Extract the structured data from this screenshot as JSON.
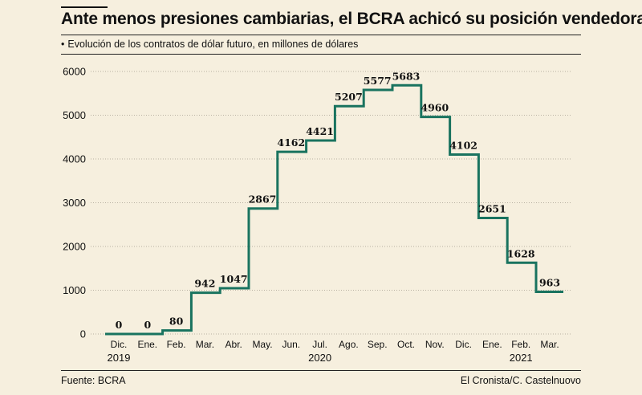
{
  "header": {
    "title": "Ante menos presiones cambiarias, el BCRA achicó su posición vendedora",
    "bullet": "•",
    "subtitle": "Evolución de los contratos de dólar futuro, en millones de dólares"
  },
  "footer": {
    "source": "Fuente: BCRA",
    "credit": "El Cronista/C. Castelnuovo"
  },
  "colors": {
    "line": "#19735f",
    "background": "#f6efde"
  },
  "chart_data": {
    "type": "line",
    "step": true,
    "title": "Ante menos presiones cambiarias, el BCRA achicó su posición vendedora",
    "ylabel": "millones de dólares",
    "ylim": [
      0,
      6000
    ],
    "yticks": [
      0,
      1000,
      2000,
      3000,
      4000,
      5000,
      6000
    ],
    "ytick_labels": [
      "0",
      "1000",
      "2000",
      "3000",
      "4000",
      "5000",
      "6000"
    ],
    "grid": true,
    "categories": [
      "Dic.",
      "Ene.",
      "Feb.",
      "Mar.",
      "Abr.",
      "May.",
      "Jun.",
      "Jul.",
      "Ago.",
      "Sep.",
      "Oct.",
      "Nov.",
      "Dic.",
      "Ene.",
      "Feb.",
      "Mar."
    ],
    "year_labels": [
      {
        "index": 0,
        "label": "2019"
      },
      {
        "index": 7,
        "label": "2020"
      },
      {
        "index": 14,
        "label": "2021"
      }
    ],
    "values": [
      0,
      0,
      80,
      942,
      1047,
      2867,
      4162,
      4421,
      5207,
      5577,
      5683,
      4960,
      4102,
      2651,
      1628,
      963
    ],
    "value_labels": [
      "0",
      "0",
      "80",
      "942",
      "1047",
      "2867",
      "4162",
      "4421",
      "5207",
      "5577",
      "5683",
      "4960",
      "4102",
      "2651",
      "1628",
      "963"
    ]
  }
}
